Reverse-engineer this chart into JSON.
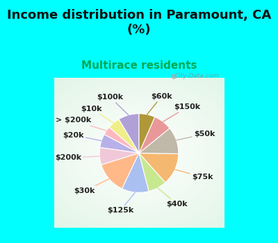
{
  "title": "Income distribution in Paramount, CA\n(%)",
  "subtitle": "Multirace residents",
  "title_fontsize": 13,
  "subtitle_fontsize": 11,
  "subtitle_color": "#00aa55",
  "background_color": "#00ffff",
  "watermark": "City-Data.com",
  "labels": [
    "$100k",
    "$10k",
    "> $200k",
    "$20k",
    "$200k",
    "$30k",
    "$125k",
    "$40k",
    "$75k",
    "$50k",
    "$150k",
    "$60k"
  ],
  "values": [
    8.5,
    5.0,
    3.5,
    5.5,
    7.0,
    13.0,
    11.0,
    7.5,
    13.0,
    11.0,
    7.5,
    6.5
  ],
  "colors": [
    "#b0a0d8",
    "#f0ee88",
    "#ffb8c0",
    "#b8b0e8",
    "#f0c8d8",
    "#ffb888",
    "#aac0f0",
    "#c8e890",
    "#f5b870",
    "#c0b8a8",
    "#e89898",
    "#b09838"
  ],
  "startangle": 90,
  "label_fontsize": 8
}
